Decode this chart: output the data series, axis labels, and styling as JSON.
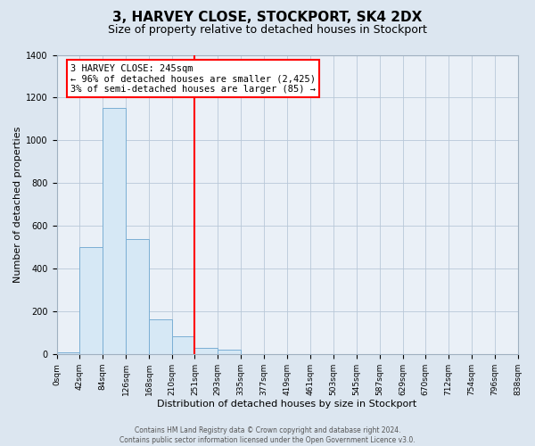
{
  "title1": "3, HARVEY CLOSE, STOCKPORT, SK4 2DX",
  "title2": "Size of property relative to detached houses in Stockport",
  "xlabel": "Distribution of detached houses by size in Stockport",
  "ylabel": "Number of detached properties",
  "bin_edges": [
    0,
    42,
    84,
    126,
    168,
    210,
    251,
    293,
    335,
    377,
    419,
    461,
    503,
    545,
    587,
    629,
    670,
    712,
    754,
    796,
    838
  ],
  "bin_counts": [
    10,
    500,
    1150,
    540,
    165,
    85,
    30,
    20,
    0,
    0,
    0,
    0,
    0,
    0,
    0,
    0,
    0,
    0,
    0,
    0
  ],
  "bar_face_color": "#d6e8f5",
  "bar_edge_color": "#7bafd4",
  "property_line_x": 251,
  "property_line_color": "red",
  "ylim": [
    0,
    1400
  ],
  "yticks": [
    0,
    200,
    400,
    600,
    800,
    1000,
    1200,
    1400
  ],
  "annotation_title": "3 HARVEY CLOSE: 245sqm",
  "annotation_line1": "← 96% of detached houses are smaller (2,425)",
  "annotation_line2": "3% of semi-detached houses are larger (85) →",
  "annotation_box_color": "white",
  "annotation_box_edge_color": "red",
  "footer1": "Contains HM Land Registry data © Crown copyright and database right 2024.",
  "footer2": "Contains public sector information licensed under the Open Government Licence v3.0.",
  "tick_labels": [
    "0sqm",
    "42sqm",
    "84sqm",
    "126sqm",
    "168sqm",
    "210sqm",
    "251sqm",
    "293sqm",
    "335sqm",
    "377sqm",
    "419sqm",
    "461sqm",
    "503sqm",
    "545sqm",
    "587sqm",
    "629sqm",
    "670sqm",
    "712sqm",
    "754sqm",
    "796sqm",
    "838sqm"
  ],
  "background_color": "#dce6f0",
  "plot_bg_color": "#eaf0f7",
  "grid_color": "#b8c8d8",
  "title_fontsize": 11,
  "subtitle_fontsize": 9,
  "ylabel_fontsize": 8,
  "xlabel_fontsize": 8,
  "tick_fontsize": 6.5,
  "footer_fontsize": 5.5,
  "ann_fontsize": 7.5
}
